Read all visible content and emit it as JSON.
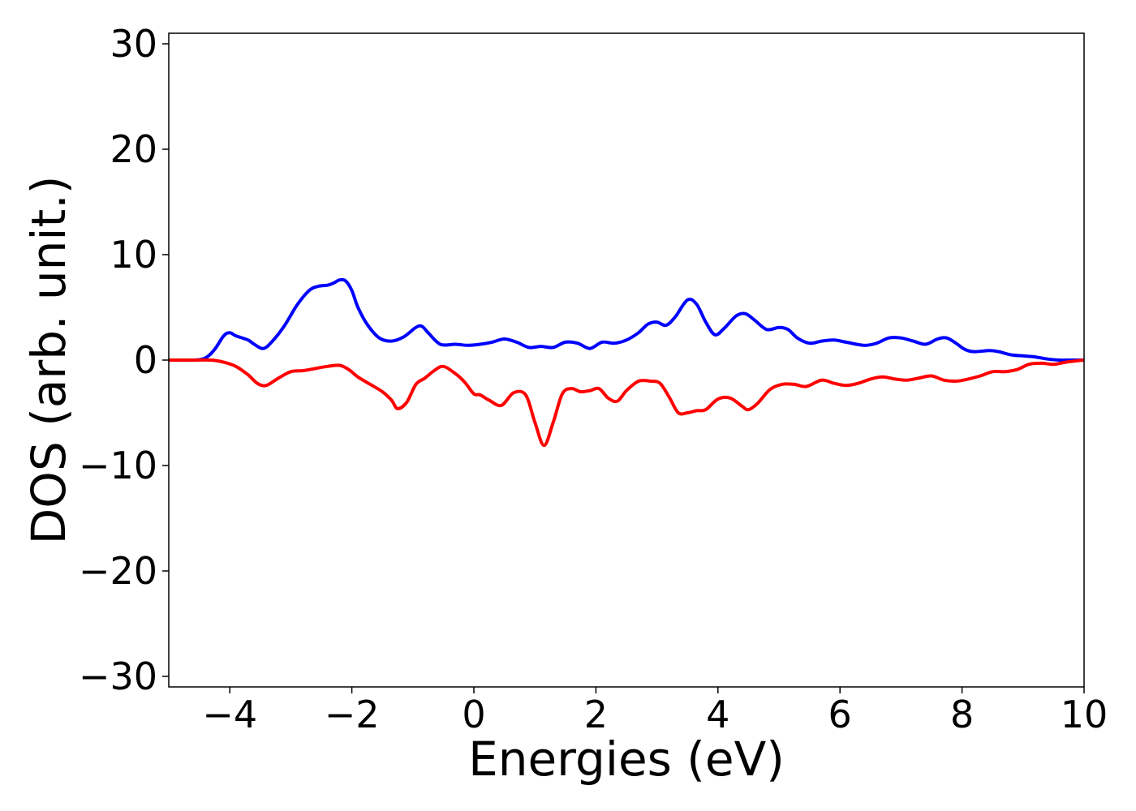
{
  "chart_data": {
    "type": "line",
    "title": "",
    "xlabel": "Energies (eV)",
    "ylabel": "DOS (arb. unit.)",
    "xlim": [
      -5,
      10
    ],
    "ylim": [
      -31,
      31
    ],
    "xticks": [
      -4,
      -2,
      0,
      2,
      4,
      6,
      8,
      10
    ],
    "yticks": [
      30,
      20,
      10,
      0,
      -10,
      -20,
      -30
    ],
    "xtick_labels": [
      "−4",
      "−2",
      "0",
      "2",
      "4",
      "6",
      "8",
      "10"
    ],
    "ytick_labels": [
      "30",
      "20",
      "10",
      "0",
      "−10",
      "−20",
      "−30"
    ],
    "grid": false,
    "legend": "none",
    "series": [
      {
        "color": "#0000ff",
        "x": [
          -5.0,
          -4.6,
          -4.4,
          -4.25,
          -4.1,
          -4.0,
          -3.9,
          -3.7,
          -3.6,
          -3.45,
          -3.3,
          -3.1,
          -2.9,
          -2.7,
          -2.55,
          -2.4,
          -2.3,
          -2.2,
          -2.1,
          -2.0,
          -1.9,
          -1.75,
          -1.55,
          -1.35,
          -1.15,
          -0.95,
          -0.85,
          -0.75,
          -0.55,
          -0.3,
          -0.1,
          0.1,
          0.3,
          0.5,
          0.7,
          0.9,
          1.1,
          1.3,
          1.5,
          1.7,
          1.9,
          2.1,
          2.3,
          2.5,
          2.7,
          2.85,
          3.0,
          3.15,
          3.3,
          3.5,
          3.65,
          3.8,
          3.95,
          4.1,
          4.3,
          4.45,
          4.6,
          4.8,
          5.0,
          5.15,
          5.3,
          5.5,
          5.7,
          5.9,
          6.1,
          6.4,
          6.6,
          6.8,
          7.0,
          7.2,
          7.4,
          7.6,
          7.75,
          7.9,
          8.05,
          8.2,
          8.45,
          8.6,
          8.8,
          9.0,
          9.2,
          9.4,
          9.6,
          9.8,
          10.0
        ],
        "y": [
          0.0,
          0.0,
          0.2,
          1.0,
          2.3,
          2.6,
          2.3,
          1.9,
          1.5,
          1.1,
          1.8,
          3.3,
          5.2,
          6.6,
          7.0,
          7.1,
          7.3,
          7.6,
          7.5,
          6.6,
          5.0,
          3.4,
          2.1,
          1.8,
          2.2,
          3.1,
          3.2,
          2.6,
          1.5,
          1.5,
          1.4,
          1.5,
          1.7,
          2.0,
          1.7,
          1.2,
          1.3,
          1.2,
          1.7,
          1.6,
          1.1,
          1.7,
          1.6,
          1.9,
          2.6,
          3.4,
          3.6,
          3.3,
          4.1,
          5.7,
          5.3,
          3.6,
          2.4,
          3.0,
          4.2,
          4.4,
          3.8,
          2.9,
          3.1,
          2.9,
          2.1,
          1.6,
          1.8,
          1.9,
          1.7,
          1.4,
          1.6,
          2.1,
          2.1,
          1.8,
          1.5,
          2.0,
          2.1,
          1.6,
          1.0,
          0.8,
          0.9,
          0.8,
          0.5,
          0.4,
          0.3,
          0.1,
          0.0,
          0.0,
          0.0
        ]
      },
      {
        "color": "#ff0000",
        "x": [
          -5.0,
          -4.6,
          -4.3,
          -4.1,
          -3.9,
          -3.7,
          -3.55,
          -3.4,
          -3.2,
          -3.0,
          -2.8,
          -2.6,
          -2.4,
          -2.2,
          -2.05,
          -1.9,
          -1.7,
          -1.5,
          -1.35,
          -1.25,
          -1.1,
          -0.95,
          -0.8,
          -0.65,
          -0.5,
          -0.3,
          -0.15,
          0.0,
          0.1,
          0.25,
          0.45,
          0.65,
          0.85,
          1.0,
          1.15,
          1.3,
          1.45,
          1.6,
          1.75,
          1.9,
          2.05,
          2.2,
          2.35,
          2.5,
          2.7,
          2.9,
          3.05,
          3.2,
          3.35,
          3.5,
          3.65,
          3.8,
          4.0,
          4.2,
          4.4,
          4.5,
          4.65,
          4.85,
          5.05,
          5.25,
          5.45,
          5.7,
          5.9,
          6.1,
          6.3,
          6.5,
          6.7,
          6.9,
          7.1,
          7.3,
          7.5,
          7.7,
          7.9,
          8.1,
          8.3,
          8.5,
          8.7,
          8.9,
          9.1,
          9.3,
          9.5,
          9.7,
          10.0
        ],
        "y": [
          0.0,
          0.0,
          0.0,
          -0.2,
          -0.6,
          -1.4,
          -2.2,
          -2.4,
          -1.7,
          -1.1,
          -1.0,
          -0.8,
          -0.6,
          -0.5,
          -0.9,
          -1.6,
          -2.3,
          -3.0,
          -3.8,
          -4.6,
          -4.0,
          -2.3,
          -1.7,
          -1.0,
          -0.6,
          -1.3,
          -2.1,
          -3.2,
          -3.3,
          -3.8,
          -4.3,
          -3.1,
          -3.3,
          -5.9,
          -8.1,
          -5.9,
          -3.2,
          -2.7,
          -3.0,
          -2.9,
          -2.7,
          -3.6,
          -3.9,
          -2.9,
          -2.0,
          -2.0,
          -2.2,
          -3.5,
          -5.0,
          -5.0,
          -4.8,
          -4.7,
          -3.7,
          -3.6,
          -4.4,
          -4.7,
          -4.1,
          -2.8,
          -2.3,
          -2.3,
          -2.5,
          -1.9,
          -2.2,
          -2.4,
          -2.2,
          -1.8,
          -1.6,
          -1.8,
          -1.9,
          -1.7,
          -1.5,
          -1.9,
          -2.0,
          -1.8,
          -1.5,
          -1.1,
          -1.1,
          -0.9,
          -0.4,
          -0.3,
          -0.4,
          -0.2,
          0.0
        ]
      }
    ]
  }
}
